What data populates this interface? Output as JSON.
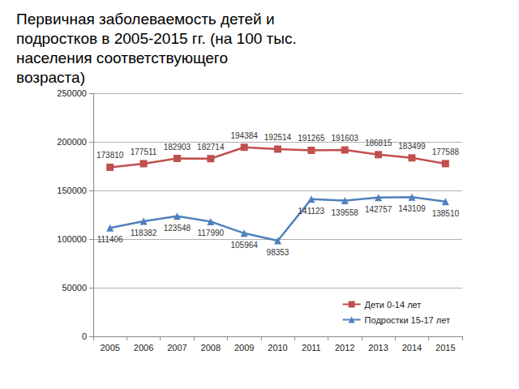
{
  "chart_data": {
    "type": "line",
    "title": "Первичная заболеваемость детей и подростков в 2005-2015 гг. (на 100 тыс. населения соответствующего возраста)",
    "categories": [
      "2005",
      "2006",
      "2007",
      "2008",
      "2009",
      "2010",
      "2011",
      "2012",
      "2013",
      "2014",
      "2015"
    ],
    "series": [
      {
        "name": "Дети 0-14 лет",
        "color": "#c0504d",
        "marker": "square",
        "line_style": "solid",
        "values": [
          173810,
          177511,
          182903,
          182714,
          194384,
          192514,
          191265,
          191603,
          186815,
          183499,
          177588
        ]
      },
      {
        "name": "Подростки 15-17 лет",
        "color": "#4f81bd",
        "marker": "triangle",
        "line_style": "solid",
        "values": [
          111406,
          118382,
          123548,
          117990,
          105964,
          98353,
          141123,
          139558,
          142757,
          143109,
          138510
        ]
      }
    ],
    "ylim": [
      0,
      250000
    ],
    "yticks": [
      0,
      50000,
      100000,
      150000,
      200000,
      250000
    ],
    "grid": true,
    "legend": "lower right",
    "data_labels": true
  }
}
